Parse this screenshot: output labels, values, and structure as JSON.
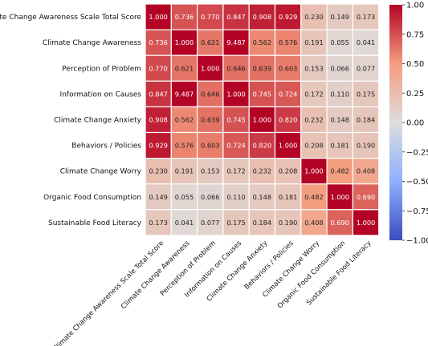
{
  "chart_data": {
    "type": "heatmap",
    "title": "",
    "xlabel": "",
    "ylabel": "",
    "labels": [
      "Climate Change Awareness Scale Total Score",
      "Climate Change Awareness",
      "Perception of Problem",
      "Information on Causes",
      "Climate Change Anxiety",
      "Behaviors / Policies",
      "Climate Change Worry",
      "Organic Food Consumption",
      "Sustainable Food Literacy"
    ],
    "values": [
      [
        1.0,
        0.736,
        0.77,
        0.847,
        0.908,
        0.929,
        0.23,
        0.149,
        0.173
      ],
      [
        0.736,
        1.0,
        0.621,
        9.487,
        0.562,
        0.576,
        0.191,
        0.055,
        0.041
      ],
      [
        0.77,
        0.621,
        1.0,
        0.646,
        0.639,
        0.603,
        0.153,
        0.066,
        0.077
      ],
      [
        0.847,
        9.487,
        0.646,
        1.0,
        0.745,
        0.724,
        0.172,
        0.11,
        0.175
      ],
      [
        0.908,
        0.562,
        0.639,
        0.745,
        1.0,
        0.82,
        0.232,
        0.148,
        0.184
      ],
      [
        0.929,
        0.576,
        0.603,
        0.724,
        0.82,
        1.0,
        0.208,
        0.181,
        0.19
      ],
      [
        0.23,
        0.191,
        0.153,
        0.172,
        0.232,
        0.208,
        1.0,
        0.482,
        0.408
      ],
      [
        0.149,
        0.055,
        0.066,
        0.11,
        0.148,
        0.181,
        0.482,
        1.0,
        0.69
      ],
      [
        0.173,
        0.041,
        0.077,
        0.175,
        0.184,
        0.19,
        0.408,
        0.69,
        1.0
      ]
    ],
    "colorbar": {
      "min": -1.0,
      "max": 1.0,
      "ticks": [
        "1.00",
        "0.75",
        "0.50",
        "0.25",
        "0.00",
        "−0.25",
        "−0.50",
        "−0.75",
        "−1.00"
      ],
      "colormap": "coolwarm",
      "low_color": "#3b4cc0",
      "mid_color": "#dddddd",
      "high_color": "#b40426"
    },
    "grid": true,
    "value_format": "3 decimals"
  }
}
